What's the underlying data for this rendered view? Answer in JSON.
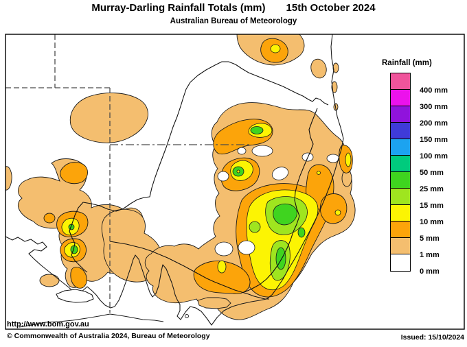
{
  "header": {
    "title": "Murray-Darling Rainfall Totals (mm)",
    "date": "15th October 2024",
    "subtitle": "Australian Bureau of Meteorology"
  },
  "legend": {
    "title": "Rainfall (mm)",
    "entries": [
      {
        "label": "400 mm",
        "color": "#F0549B"
      },
      {
        "label": "300 mm",
        "color": "#EC12EC"
      },
      {
        "label": "200 mm",
        "color": "#9013DC"
      },
      {
        "label": "150 mm",
        "color": "#3F3BD9"
      },
      {
        "label": "100 mm",
        "color": "#1CA3F0"
      },
      {
        "label": "50 mm",
        "color": "#00CB7D"
      },
      {
        "label": "25 mm",
        "color": "#3FD41F"
      },
      {
        "label": "15 mm",
        "color": "#9FE51F"
      },
      {
        "label": "10 mm",
        "color": "#FCF403"
      },
      {
        "label": "5 mm",
        "color": "#FCA40A"
      },
      {
        "label": "1 mm",
        "color": "#F4BE6F"
      },
      {
        "label": "0 mm",
        "color": "#FFFFFF"
      }
    ]
  },
  "map": {
    "region": "Murray-Darling Basin, south-eastern Australia",
    "colors": {
      "land": "#FFFFFF",
      "rain_1mm": "#F4BE6F",
      "rain_5mm": "#FCA40A",
      "rain_10mm": "#FCF403",
      "rain_15mm": "#9FE51F",
      "rain_25mm": "#3FD41F",
      "outline": "#1A1A1A",
      "state_border": "#4A4A4A"
    }
  },
  "footer": {
    "url": "http://www.bom.gov.au",
    "copyright": "© Commonwealth of Australia 2024, Bureau of Meteorology",
    "issued": "Issued: 15/10/2024"
  }
}
